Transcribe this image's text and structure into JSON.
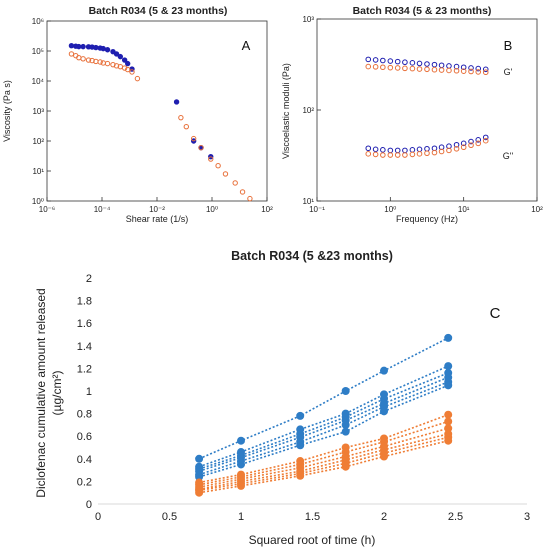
{
  "colors": {
    "blue": "#1f1fb0",
    "orange": "#e8703a",
    "line_blue": "#2e7dc6",
    "line_orange": "#ef7d35",
    "open_blue": "#3c3cc8"
  },
  "chart_data": [
    {
      "id": "A",
      "type": "scatter",
      "panel_label": "A",
      "title": "Batch R034 (5 & 23 months)",
      "xlabel": "Shear rate (1/s)",
      "ylabel": "Viscosity (Pa s)",
      "xscale": "log",
      "yscale": "log",
      "xlim": [
        1e-06,
        1000
      ],
      "ylim": [
        1,
        1000000
      ],
      "xticks": [
        "10⁻⁶",
        "10⁻⁴",
        "10⁻²",
        "10⁰",
        "10²"
      ],
      "yticks": [
        "10⁰",
        "10¹",
        "10²",
        "10³",
        "10⁴",
        "10⁵",
        "10⁶"
      ],
      "series": [
        {
          "marker": "filled",
          "color": "blue",
          "x": [
            1e-05,
            1.5e-05,
            2e-05,
            3e-05,
            5e-05,
            7e-05,
            0.0001,
            0.00015,
            0.0002,
            0.0003,
            0.0005,
            0.0007,
            0.001,
            0.0015,
            0.002,
            0.003,
            0.2,
            1,
            2,
            5
          ],
          "y": [
            150000,
            145000,
            140000,
            140000,
            138000,
            135000,
            130000,
            125000,
            120000,
            110000,
            95000,
            80000,
            65000,
            50000,
            38000,
            25000,
            2000,
            100,
            60,
            30
          ]
        },
        {
          "marker": "open",
          "color": "orange",
          "x": [
            1e-05,
            1.5e-05,
            2e-05,
            3e-05,
            5e-05,
            7e-05,
            0.0001,
            0.00015,
            0.0002,
            0.0003,
            0.0005,
            0.0007,
            0.001,
            0.0015,
            0.002,
            0.003,
            0.005,
            0.3,
            0.5,
            1,
            2,
            5,
            10,
            20,
            50,
            100,
            200
          ],
          "y": [
            80000,
            70000,
            60000,
            55000,
            50000,
            48000,
            45000,
            43000,
            40000,
            38000,
            35000,
            32000,
            30000,
            27000,
            24000,
            20000,
            12000,
            600,
            300,
            120,
            60,
            25,
            15,
            8,
            4,
            2,
            1.2
          ]
        }
      ]
    },
    {
      "id": "B",
      "type": "scatter",
      "panel_label": "B",
      "title": "Batch R034 (5 & 23 months)",
      "xlabel": "Frequency (Hz)",
      "ylabel": "Viscoelastic moduli (Pa)",
      "xscale": "log",
      "yscale": "log",
      "xlim": [
        0.1,
        100
      ],
      "ylim": [
        10,
        1000
      ],
      "xticks": [
        "10⁻¹",
        "10⁰",
        "10¹",
        "10²"
      ],
      "yticks": [
        "10¹",
        "10²",
        "10³"
      ],
      "annotations": [
        "G'",
        "G''"
      ],
      "series": [
        {
          "name": "G'",
          "marker": "open",
          "color": "blue",
          "x": [
            0.5,
            0.63,
            0.79,
            1,
            1.26,
            1.58,
            2,
            2.5,
            3.16,
            4,
            5,
            6.3,
            8,
            10,
            12.6,
            15.8,
            20
          ],
          "y": [
            360,
            355,
            350,
            345,
            340,
            335,
            330,
            325,
            320,
            315,
            310,
            305,
            300,
            295,
            290,
            285,
            280
          ]
        },
        {
          "name": "G'",
          "marker": "open",
          "color": "orange",
          "x": [
            0.5,
            0.63,
            0.79,
            1,
            1.26,
            1.58,
            2,
            2.5,
            3.16,
            4,
            5,
            6.3,
            8,
            10,
            12.6,
            15.8,
            20
          ],
          "y": [
            300,
            298,
            295,
            292,
            290,
            287,
            285,
            282,
            280,
            277,
            275,
            272,
            270,
            267,
            265,
            262,
            260
          ]
        },
        {
          "name": "G''",
          "marker": "open",
          "color": "blue",
          "x": [
            0.5,
            0.63,
            0.79,
            1,
            1.26,
            1.58,
            2,
            2.5,
            3.16,
            4,
            5,
            6.3,
            8,
            10,
            12.6,
            15.8,
            20
          ],
          "y": [
            38,
            37,
            36.5,
            36,
            36,
            36,
            36.5,
            37,
            37.5,
            38,
            39,
            40,
            41.5,
            43,
            45,
            47,
            50
          ]
        },
        {
          "name": "G''",
          "marker": "open",
          "color": "orange",
          "x": [
            0.5,
            0.63,
            0.79,
            1,
            1.26,
            1.58,
            2,
            2.5,
            3.16,
            4,
            5,
            6.3,
            8,
            10,
            12.6,
            15.8,
            20
          ],
          "y": [
            33,
            32.5,
            32,
            32,
            32,
            32,
            32.5,
            33,
            33.5,
            34,
            35,
            36,
            37.5,
            39,
            41,
            43,
            46
          ]
        }
      ]
    },
    {
      "id": "C",
      "type": "line",
      "panel_label": "C",
      "title": "Batch R034 (5 &23 months)",
      "xlabel": "Squared root of time (h)",
      "ylabel_lines": [
        "Diclofenac cumulative amount released",
        "(µg/cm²)"
      ],
      "xlim": [
        0,
        3
      ],
      "ylim": [
        0,
        2
      ],
      "xticks": [
        "0",
        "0.5",
        "1",
        "1.5",
        "2",
        "2.5",
        "3"
      ],
      "yticks": [
        "0",
        "0.2",
        "0.4",
        "0.6",
        "0.8",
        "1",
        "1.2",
        "1.4",
        "1.6",
        "1.8",
        "2"
      ],
      "x": [
        0.707,
        1,
        1.414,
        1.732,
        2,
        2.449
      ],
      "series": [
        {
          "color": "line_blue",
          "values": [
            0.4,
            0.56,
            0.78,
            1.0,
            1.18,
            1.47
          ]
        },
        {
          "color": "line_blue",
          "values": [
            0.33,
            0.46,
            0.66,
            0.8,
            0.97,
            1.22
          ]
        },
        {
          "color": "line_blue",
          "values": [
            0.31,
            0.43,
            0.62,
            0.77,
            0.93,
            1.16
          ]
        },
        {
          "color": "line_blue",
          "values": [
            0.29,
            0.41,
            0.59,
            0.74,
            0.89,
            1.12
          ]
        },
        {
          "color": "line_blue",
          "values": [
            0.26,
            0.38,
            0.55,
            0.7,
            0.86,
            1.08
          ]
        },
        {
          "color": "line_blue",
          "values": [
            0.24,
            0.35,
            0.52,
            0.64,
            0.82,
            1.05
          ]
        },
        {
          "color": "line_orange",
          "values": [
            0.19,
            0.26,
            0.38,
            0.5,
            0.58,
            0.79
          ]
        },
        {
          "color": "line_orange",
          "values": [
            0.17,
            0.24,
            0.35,
            0.46,
            0.55,
            0.73
          ]
        },
        {
          "color": "line_orange",
          "values": [
            0.15,
            0.22,
            0.32,
            0.42,
            0.51,
            0.67
          ]
        },
        {
          "color": "line_orange",
          "values": [
            0.13,
            0.2,
            0.29,
            0.39,
            0.48,
            0.62
          ]
        },
        {
          "color": "line_orange",
          "values": [
            0.12,
            0.18,
            0.27,
            0.36,
            0.45,
            0.59
          ]
        },
        {
          "color": "line_orange",
          "values": [
            0.1,
            0.16,
            0.25,
            0.33,
            0.42,
            0.56
          ]
        }
      ]
    }
  ]
}
